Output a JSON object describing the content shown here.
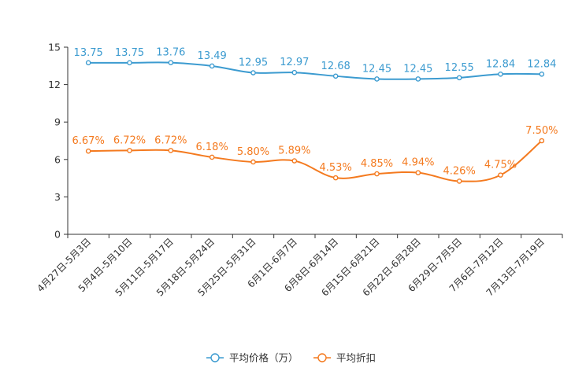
{
  "chart_data": {
    "type": "line",
    "title": "",
    "xlabel": "",
    "ylabel": "",
    "ylim": [
      0,
      15
    ],
    "yticks": [
      0,
      3,
      6,
      9,
      12,
      15
    ],
    "grid": false,
    "legend_position": "bottom-center",
    "categories": [
      "4月27日-5月3日",
      "5月4日-5月10日",
      "5月11日-5月17日",
      "5月18日-5月24日",
      "5月25日-5月31日",
      "6月1日-6月7日",
      "6月8日-6月14日",
      "6月15日-6月21日",
      "6月22日-6月28日",
      "6月29日-7月5日",
      "7月6日-7月12日",
      "7月13日-7月19日"
    ],
    "series": [
      {
        "name": "平均价格（万）",
        "color": "#3c9bd0",
        "values": [
          13.75,
          13.75,
          13.76,
          13.49,
          12.95,
          12.97,
          12.68,
          12.45,
          12.45,
          12.55,
          12.84,
          12.84
        ],
        "labels": [
          "13.75",
          "13.75",
          "13.76",
          "13.49",
          "12.95",
          "12.97",
          "12.68",
          "12.45",
          "12.45",
          "12.55",
          "12.84",
          "12.84"
        ]
      },
      {
        "name": "平均折扣",
        "color": "#f47a1f",
        "values": [
          6.67,
          6.72,
          6.72,
          6.18,
          5.8,
          5.89,
          4.53,
          4.85,
          4.94,
          4.26,
          4.75,
          7.5
        ],
        "labels": [
          "6.67%",
          "6.72%",
          "6.72%",
          "6.18%",
          "5.80%",
          "5.89%",
          "4.53%",
          "4.85%",
          "4.94%",
          "4.26%",
          "4.75%",
          "7.50%"
        ]
      }
    ]
  }
}
